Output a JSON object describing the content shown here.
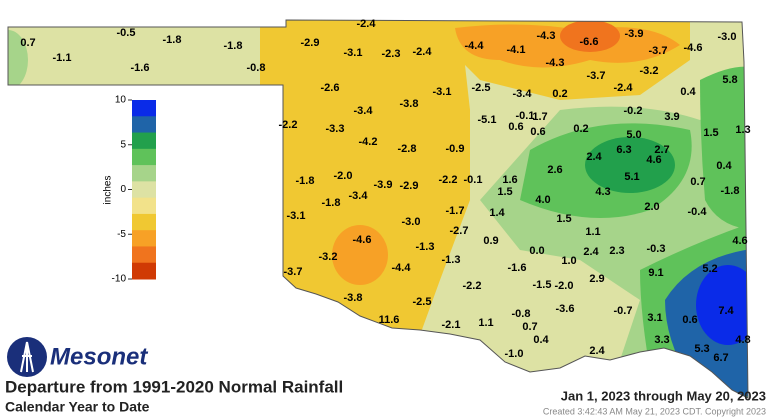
{
  "header": {
    "logo": "Mesonet"
  },
  "title": "Departure from 1991-2020 Normal Rainfall",
  "subtitle": "Calendar Year to Date",
  "date_range": "Jan 1, 2023 through May 20, 2023",
  "credit": "Created 3:42:43 AM May 21, 2023 CDT. Copyright 2023",
  "legend": {
    "label": "inches",
    "ticks": [
      10,
      5,
      0,
      -5,
      -10
    ],
    "colors": [
      "#0a2be8",
      "#1f64a8",
      "#22a04c",
      "#5fc25a",
      "#a6d48a",
      "#dde2a4",
      "#f2e28a",
      "#f0c832",
      "#f7a126",
      "#f0741e",
      "#d03a04"
    ]
  },
  "stations": {
    "values": [
      0.7,
      -1.1,
      -0.5,
      -1.8,
      -1.6,
      -1.8,
      -0.8,
      -2.4,
      -2.9,
      -3.1,
      -2.3,
      -2.4,
      -4.4,
      -4.1,
      -4.3,
      -6.6,
      -3.9,
      -3.7,
      -4.6,
      -3.0,
      -4.3,
      -3.7,
      -3.2,
      5.8,
      -2.6,
      -3.1,
      -2.5,
      -3.4,
      0.2,
      -2.4,
      0.4,
      -3.8,
      -3.4,
      -0.2,
      -5.1,
      -0.1,
      1.7,
      3.9,
      -2.2,
      -3.3,
      0.6,
      0.6,
      0.2,
      5.0,
      1.5,
      1.3,
      -4.2,
      -2.8,
      -0.9,
      2.4,
      6.3,
      2.7,
      4.6,
      0.4,
      -1.8,
      -2.0,
      -2.2,
      -0.1,
      1.6,
      2.6,
      5.1,
      0.7,
      -1.8,
      -3.9,
      -2.9,
      1.5,
      4.3,
      -1.8,
      -3.4,
      4.0,
      2.0,
      -0.4,
      -3.1,
      -1.7,
      1.4,
      1.5,
      -3.0,
      -2.7,
      1.1,
      4.6,
      -4.6,
      0.9,
      -1.3,
      0.0,
      2.4,
      2.3,
      -0.3,
      -3.2,
      -1.3,
      1.0,
      -3.7,
      -4.4,
      -1.6,
      2.9,
      9.1,
      5.2,
      -2.2,
      -1.5,
      -2.0,
      -3.8,
      -2.5,
      -0.8,
      -3.6,
      -0.7,
      3.1,
      7.4,
      11.6,
      -2.1,
      1.1,
      0.7,
      0.6,
      4.8,
      0.4,
      3.3,
      5.3,
      6.7,
      -1.0,
      2.4
    ],
    "value_labels": [
      "0.7",
      "-1.1",
      "-0.5",
      "-1.8",
      "-1.6",
      "-1.8",
      "-0.8",
      "-2.4",
      "-2.9",
      "-3.1",
      "-2.3",
      "-2.4",
      "-4.4",
      "-4.1",
      "-4.3",
      "-6.6",
      "-3.9",
      "-3.7",
      "-4.6",
      "-3.0",
      "-4.3",
      "-3.7",
      "-3.2",
      "5.8",
      "-2.6",
      "-3.1",
      "-2.5",
      "-3.4",
      "0.2",
      "-2.4",
      "0.4",
      "-3.8",
      "-3.4",
      "-0.2",
      "-5.1",
      "-0.1",
      "1.7",
      "3.9",
      "-2.2",
      "-3.3",
      "0.6",
      "0.6",
      "0.2",
      "5.0",
      "1.5",
      "1.3",
      "-4.2",
      "-2.8",
      "-0.9",
      "2.4",
      "6.3",
      "2.7",
      "4.6",
      "0.4",
      "-1.8",
      "-2.0",
      "-2.2",
      "-0.1",
      "1.6",
      "2.6",
      "5.1",
      "0.7",
      "-1.8",
      "-3.9",
      "-2.9",
      "1.5",
      "4.3",
      "-1.8",
      "-3.4",
      "4.0",
      "2.0",
      "-0.4",
      "-3.1",
      "-1.7",
      "1.4",
      "1.5",
      "-3.0",
      "-2.7",
      "1.1",
      "4.6",
      "-4.6",
      "0.9",
      "-1.3",
      "0.0",
      "2.4",
      "2.3",
      "-0.3",
      "-3.2",
      "-1.3",
      "1.0",
      "-3.7",
      "-4.4",
      "-1.6",
      "2.9",
      "9.1",
      "5.2",
      "-2.2",
      "-1.5",
      "-2.0",
      "-3.8",
      "-2.5",
      "-0.8",
      "-3.6",
      "-0.7",
      "3.1",
      "7.4",
      "11.6",
      "-2.1",
      "1.1",
      "0.7",
      "0.6",
      "4.8",
      "0.4",
      "3.3",
      "5.3",
      "6.7",
      "-1.0",
      "2.4"
    ]
  }
}
